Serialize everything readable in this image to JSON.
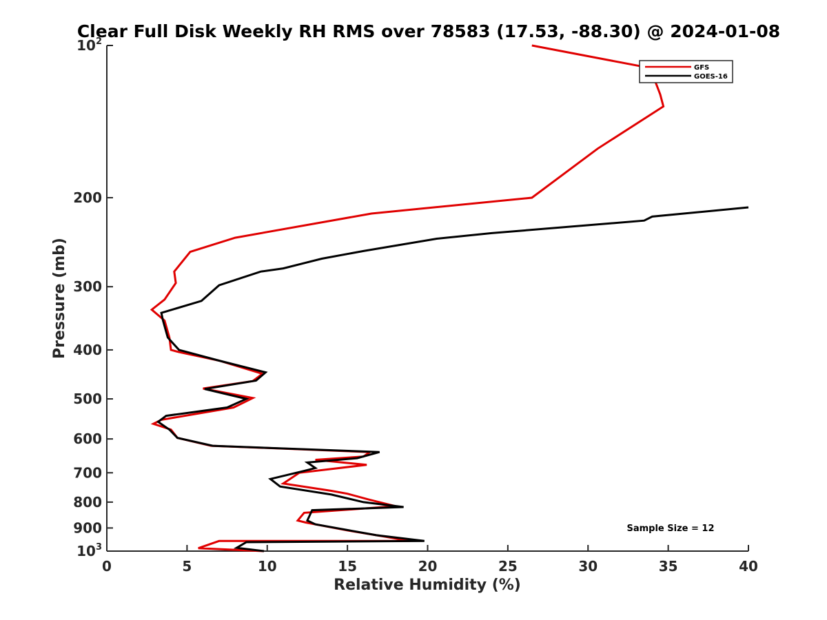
{
  "chart_data": {
    "type": "line",
    "title": "Clear Full Disk Weekly RH RMS over 78583 (17.53, -88.30) @ 2024-01-08",
    "xlabel": "Relative Humidity (%)",
    "ylabel": "Pressure (mb)",
    "xlim": [
      0,
      40
    ],
    "ylim": [
      100,
      1000
    ],
    "y_scale": "log",
    "y_reversed": true,
    "x_ticks": [
      0,
      5,
      10,
      15,
      20,
      25,
      30,
      35,
      40
    ],
    "y_ticks": [
      {
        "value": 100,
        "base": "10",
        "exp": "2"
      },
      {
        "value": 200,
        "label": "200"
      },
      {
        "value": 300,
        "label": "300"
      },
      {
        "value": 400,
        "label": "400"
      },
      {
        "value": 500,
        "label": "500"
      },
      {
        "value": 600,
        "label": "600"
      },
      {
        "value": 700,
        "label": "700"
      },
      {
        "value": 800,
        "label": "800"
      },
      {
        "value": 900,
        "label": "900"
      },
      {
        "value": 1000,
        "base": "10",
        "exp": "3"
      }
    ],
    "grid": false,
    "legend_position": "top-right",
    "annotation": "Sample Size = 12",
    "series": [
      {
        "name": "GFS",
        "color": "#e00000",
        "x": [
          26.5,
          34.0,
          34.2,
          34.5,
          34.7,
          30.6,
          26.5,
          16.5,
          8.0,
          5.2,
          4.2,
          4.3,
          3.6,
          2.8,
          3.6,
          3.9,
          4.0,
          4.5,
          7.0,
          9.7,
          9.1,
          6.0,
          9.1,
          7.9,
          3.4,
          2.9,
          4.0,
          4.4,
          6.5,
          16.4,
          16.0,
          13.0,
          16.2,
          12.0,
          11.0,
          14.0,
          15.0,
          16.3,
          18.0,
          12.3,
          11.9,
          12.4,
          15.0,
          17.5,
          18.9,
          7.0,
          5.7,
          9.8
        ],
        "y": [
          100,
          111,
          118,
          125,
          132,
          160,
          200,
          215,
          240,
          256,
          280,
          295,
          318,
          333,
          350,
          378,
          400,
          404,
          420,
          446,
          461,
          477,
          498,
          520,
          550,
          560,
          575,
          597,
          619,
          637,
          650,
          660,
          675,
          700,
          735,
          760,
          770,
          790,
          815,
          840,
          870,
          878,
          910,
          938,
          955,
          955,
          987,
          1000
        ]
      },
      {
        "name": "GOES-16",
        "color": "#000000",
        "x": [
          40.0,
          34.0,
          33.5,
          24.0,
          20.6,
          16.0,
          13.4,
          11.0,
          9.6,
          7.0,
          5.9,
          3.4,
          3.5,
          3.8,
          4.5,
          7.0,
          9.9,
          9.3,
          6.1,
          8.7,
          7.5,
          3.7,
          3.2,
          3.9,
          4.4,
          6.6,
          17.0,
          15.6,
          12.5,
          13.0,
          12.3,
          10.2,
          10.8,
          14.0,
          16.0,
          18.5,
          12.8,
          12.5,
          13.0,
          16.8,
          19.8,
          8.7,
          8.1,
          9.8
        ],
        "y": [
          209,
          218,
          222,
          235,
          241,
          255,
          264,
          276,
          280,
          298,
          320,
          338,
          350,
          378,
          400,
          420,
          443,
          460,
          478,
          500,
          520,
          540,
          555,
          575,
          597,
          619,
          637,
          655,
          668,
          685,
          694,
          720,
          745,
          773,
          800,
          818,
          830,
          870,
          885,
          930,
          955,
          960,
          985,
          1000
        ]
      }
    ]
  }
}
